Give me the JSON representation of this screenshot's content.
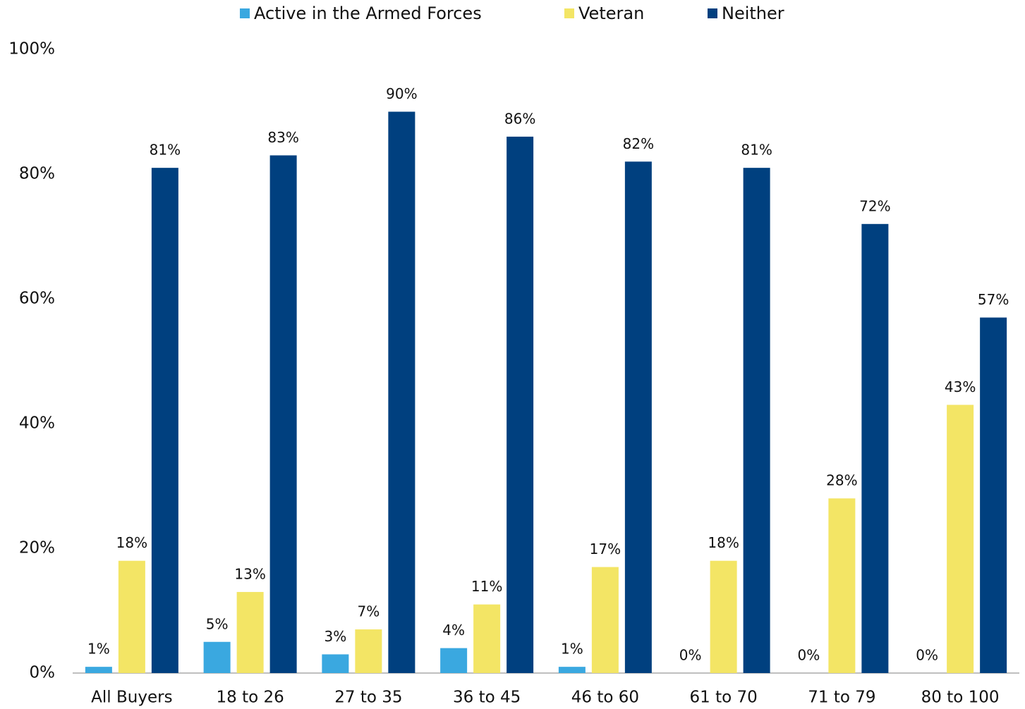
{
  "chart_data": {
    "type": "bar",
    "categories": [
      "All Buyers",
      "18 to 26",
      "27 to 35",
      "36 to 45",
      "46 to 60",
      "61 to 70",
      "71 to 79",
      "80 to 100"
    ],
    "series": [
      {
        "name": "Active in the Armed Forces",
        "color": "#3aa8e0",
        "values": [
          1,
          5,
          3,
          4,
          1,
          0,
          0,
          0
        ],
        "value_labels": [
          "1%",
          "5%",
          "3%",
          "4%",
          "1%",
          "0%",
          "0%",
          "0%"
        ]
      },
      {
        "name": "Veteran",
        "color": "#f3e565",
        "values": [
          18,
          13,
          7,
          11,
          17,
          18,
          28,
          43
        ],
        "value_labels": [
          "18%",
          "13%",
          "7%",
          "11%",
          "17%",
          "18%",
          "28%",
          "43%"
        ]
      },
      {
        "name": "Neither",
        "color": "#00407f",
        "values": [
          81,
          83,
          90,
          86,
          82,
          81,
          72,
          57
        ],
        "value_labels": [
          "81%",
          "83%",
          "90%",
          "86%",
          "82%",
          "81%",
          "72%",
          "57%"
        ]
      }
    ],
    "ylim": [
      0,
      100
    ],
    "yticks": [
      {
        "value": 0,
        "label": "0%"
      },
      {
        "value": 20,
        "label": "20%"
      },
      {
        "value": 40,
        "label": "40%"
      },
      {
        "value": 60,
        "label": "60%"
      },
      {
        "value": 80,
        "label": "80%"
      },
      {
        "value": 100,
        "label": "100%"
      }
    ],
    "grid": false,
    "legend": "top"
  }
}
